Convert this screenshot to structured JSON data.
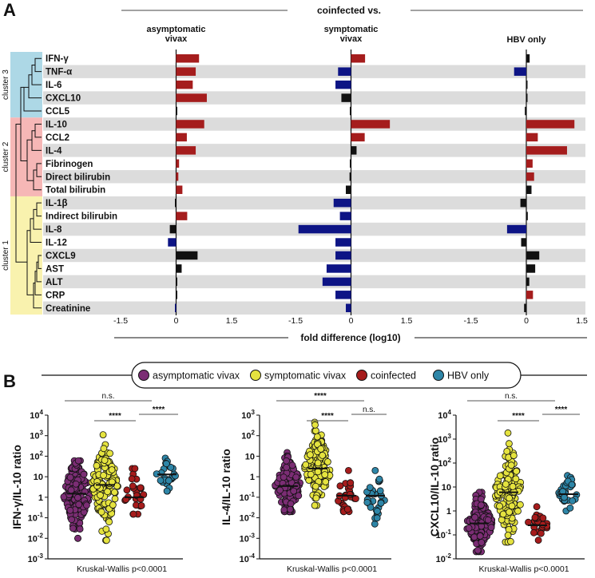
{
  "panel_a": {
    "letter": "A",
    "header": "coinfected vs.",
    "columns": [
      "asymptomatic\nvivax",
      "symptomatic\nvivax",
      "HBV only"
    ],
    "axis_label": "fold difference (log10)",
    "tick_labels": [
      "-1.5",
      "0",
      "1.5"
    ],
    "clusters": [
      {
        "label": "cluster 3",
        "color": "#add8e6"
      },
      {
        "label": "cluster 2",
        "color": "#f6b7b6"
      },
      {
        "label": "cluster 1",
        "color": "#f9f2ae"
      }
    ],
    "colors": {
      "positive": "#a51d1d",
      "negative": "#0d1485",
      "ns": "#111111",
      "stripe": "#dcdcdc"
    }
  },
  "panel_b": {
    "letter": "B",
    "legend": [
      {
        "label": "asymptomatic vivax",
        "color": "#7b2d74"
      },
      {
        "label": "symptomatic vivax",
        "color": "#e5e33f"
      },
      {
        "label": "coinfected",
        "color": "#a61c1c"
      },
      {
        "label": "HBV only",
        "color": "#2e86a8"
      }
    ],
    "stats_footer": "Kruskal-Wallis p<0.0001"
  },
  "chart_data": [
    {
      "type": "bar",
      "orientation": "horizontal",
      "title": "coinfected vs. asymptomatic vivax",
      "xlabel": "fold difference (log10)",
      "xlim": [
        -1.5,
        1.5
      ],
      "categories": [
        "IFN-γ",
        "TNF-α",
        "IL-6",
        "CXCL10",
        "CCL5",
        "IL-10",
        "CCL2",
        "IL-4",
        "Fibrinogen",
        "Direct bilirubin",
        "Total bilirubin",
        "IL-1β",
        "Indirect bilirubin",
        "IL-8",
        "IL-12",
        "CXCL9",
        "AST",
        "ALT",
        "CRP",
        "Creatinine"
      ],
      "cluster_membership": [
        "cluster 3",
        "cluster 3",
        "cluster 3",
        "cluster 3",
        "cluster 3",
        "cluster 2",
        "cluster 2",
        "cluster 2",
        "cluster 2",
        "cluster 2",
        "cluster 2",
        "cluster 1",
        "cluster 1",
        "cluster 1",
        "cluster 1",
        "cluster 1",
        "cluster 1",
        "cluster 1",
        "cluster 1",
        "cluster 1"
      ],
      "values": [
        0.62,
        0.53,
        0.45,
        0.83,
        0.03,
        0.76,
        0.29,
        0.53,
        0.08,
        0.06,
        0.17,
        -0.02,
        0.3,
        -0.17,
        -0.22,
        0.58,
        0.15,
        0.03,
        0.03,
        -0.03
      ],
      "significance": [
        "up",
        "up",
        "up",
        "up",
        "ns",
        "up",
        "up",
        "up",
        "up",
        "up",
        "up",
        "ns",
        "up",
        "ns",
        "down",
        "ns",
        "ns",
        "ns",
        "ns",
        "down"
      ]
    },
    {
      "type": "bar",
      "orientation": "horizontal",
      "title": "coinfected vs. symptomatic vivax",
      "xlabel": "fold difference (log10)",
      "xlim": [
        -1.5,
        1.5
      ],
      "categories": [
        "IFN-γ",
        "TNF-α",
        "IL-6",
        "CXCL10",
        "CCL5",
        "IL-10",
        "CCL2",
        "IL-4",
        "Fibrinogen",
        "Direct bilirubin",
        "Total bilirubin",
        "IL-1β",
        "Indirect bilirubin",
        "IL-8",
        "IL-12",
        "CXCL9",
        "AST",
        "ALT",
        "CRP",
        "Creatinine"
      ],
      "values": [
        0.38,
        -0.35,
        -0.42,
        -0.26,
        -0.03,
        1.05,
        0.37,
        0.15,
        -0.02,
        -0.04,
        -0.14,
        -0.47,
        -0.3,
        -1.42,
        -0.42,
        -0.42,
        -0.66,
        -0.77,
        -0.42,
        -0.14
      ],
      "significance": [
        "up",
        "down",
        "down",
        "ns",
        "ns",
        "up",
        "up",
        "ns",
        "ns",
        "ns",
        "ns",
        "down",
        "down",
        "down",
        "down",
        "down",
        "down",
        "down",
        "down",
        "down"
      ]
    },
    {
      "type": "bar",
      "orientation": "horizontal",
      "title": "coinfected vs. HBV only",
      "xlabel": "fold difference (log10)",
      "xlim": [
        -1.5,
        1.5
      ],
      "categories": [
        "IFN-γ",
        "TNF-α",
        "IL-6",
        "CXCL10",
        "CCL5",
        "IL-10",
        "CCL2",
        "IL-4",
        "Fibrinogen",
        "Direct bilirubin",
        "Total bilirubin",
        "IL-1β",
        "Indirect bilirubin",
        "IL-8",
        "IL-12",
        "CXCL9",
        "AST",
        "ALT",
        "CRP",
        "Creatinine"
      ],
      "values": [
        0.09,
        -0.33,
        0.0,
        0.0,
        -0.04,
        1.3,
        0.31,
        1.1,
        0.17,
        0.21,
        0.14,
        -0.16,
        0.04,
        -0.52,
        -0.14,
        0.35,
        0.24,
        0.08,
        0.18,
        -0.06
      ],
      "significance": [
        "ns",
        "down",
        "ns",
        "ns",
        "ns",
        "up",
        "up",
        "up",
        "up",
        "up",
        "ns",
        "ns",
        "ns",
        "down",
        "ns",
        "ns",
        "ns",
        "ns",
        "up",
        "ns"
      ]
    },
    {
      "type": "scatter",
      "title": "IFN-γ/IL-10 ratio",
      "ylabel": "IFN-γ/IL-10 ratio",
      "yscale": "log",
      "ylim_exp": [
        -3,
        4
      ],
      "ytick_labels": [
        "10-3",
        "10-2",
        "10-1",
        "1",
        "10",
        "102",
        "103",
        "104"
      ],
      "groups": [
        "asymptomatic vivax",
        "symptomatic vivax",
        "coinfected",
        "HBV only"
      ],
      "medians": [
        1.5,
        4.0,
        1.0,
        13.0
      ],
      "spread_range": [
        [
          0.01,
          60
        ],
        [
          0.008,
          1100
        ],
        [
          0.15,
          25
        ],
        [
          2.0,
          80
        ]
      ],
      "n_points": [
        150,
        140,
        28,
        30
      ],
      "comparisons": [
        {
          "groups": [
            "asymptomatic vivax",
            "coinfected"
          ],
          "label": "n.s."
        },
        {
          "groups": [
            "symptomatic vivax",
            "coinfected"
          ],
          "label": "****"
        },
        {
          "groups": [
            "coinfected",
            "HBV only"
          ],
          "label": "****"
        }
      ],
      "footer": "Kruskal-Wallis p<0.0001"
    },
    {
      "type": "scatter",
      "title": "IL-4/IL-10 ratio",
      "ylabel": "IL-4/IL-10 ratio",
      "yscale": "log",
      "ylim_exp": [
        -4,
        3
      ],
      "ytick_labels": [
        "10-4",
        "10-3",
        "10-2",
        "10-1",
        "1",
        "10",
        "102",
        "103"
      ],
      "groups": [
        "asymptomatic vivax",
        "symptomatic vivax",
        "coinfected",
        "HBV only"
      ],
      "medians": [
        0.35,
        2.5,
        0.12,
        0.12
      ],
      "spread_range": [
        [
          0.02,
          15
        ],
        [
          0.04,
          450
        ],
        [
          0.02,
          2
        ],
        [
          0.005,
          2
        ]
      ],
      "n_points": [
        150,
        140,
        28,
        30
      ],
      "comparisons": [
        {
          "groups": [
            "asymptomatic vivax",
            "coinfected"
          ],
          "label": "****"
        },
        {
          "groups": [
            "symptomatic vivax",
            "coinfected"
          ],
          "label": "****"
        },
        {
          "groups": [
            "coinfected",
            "HBV only"
          ],
          "label": "n.s."
        }
      ],
      "footer": "Kruskal-Wallis p<0.0001"
    },
    {
      "type": "scatter",
      "title": "CXCL10/IL-10 ratio",
      "ylabel": "CXCL10/IL-10 ratio",
      "yscale": "log",
      "ylim_exp": [
        -2,
        4
      ],
      "ytick_labels": [
        "10-2",
        "10-1",
        "1",
        "10",
        "102",
        "103",
        "104"
      ],
      "groups": [
        "asymptomatic vivax",
        "symptomatic vivax",
        "coinfected",
        "HBV only"
      ],
      "medians": [
        0.3,
        6.0,
        0.25,
        5.0
      ],
      "spread_range": [
        [
          0.02,
          6
        ],
        [
          0.05,
          1800
        ],
        [
          0.06,
          1.5
        ],
        [
          1.0,
          30
        ]
      ],
      "n_points": [
        150,
        140,
        28,
        30
      ],
      "comparisons": [
        {
          "groups": [
            "asymptomatic vivax",
            "coinfected"
          ],
          "label": "n.s."
        },
        {
          "groups": [
            "symptomatic vivax",
            "coinfected"
          ],
          "label": "****"
        },
        {
          "groups": [
            "coinfected",
            "HBV only"
          ],
          "label": "****"
        }
      ],
      "footer": "Kruskal-Wallis p<0.0001"
    }
  ]
}
